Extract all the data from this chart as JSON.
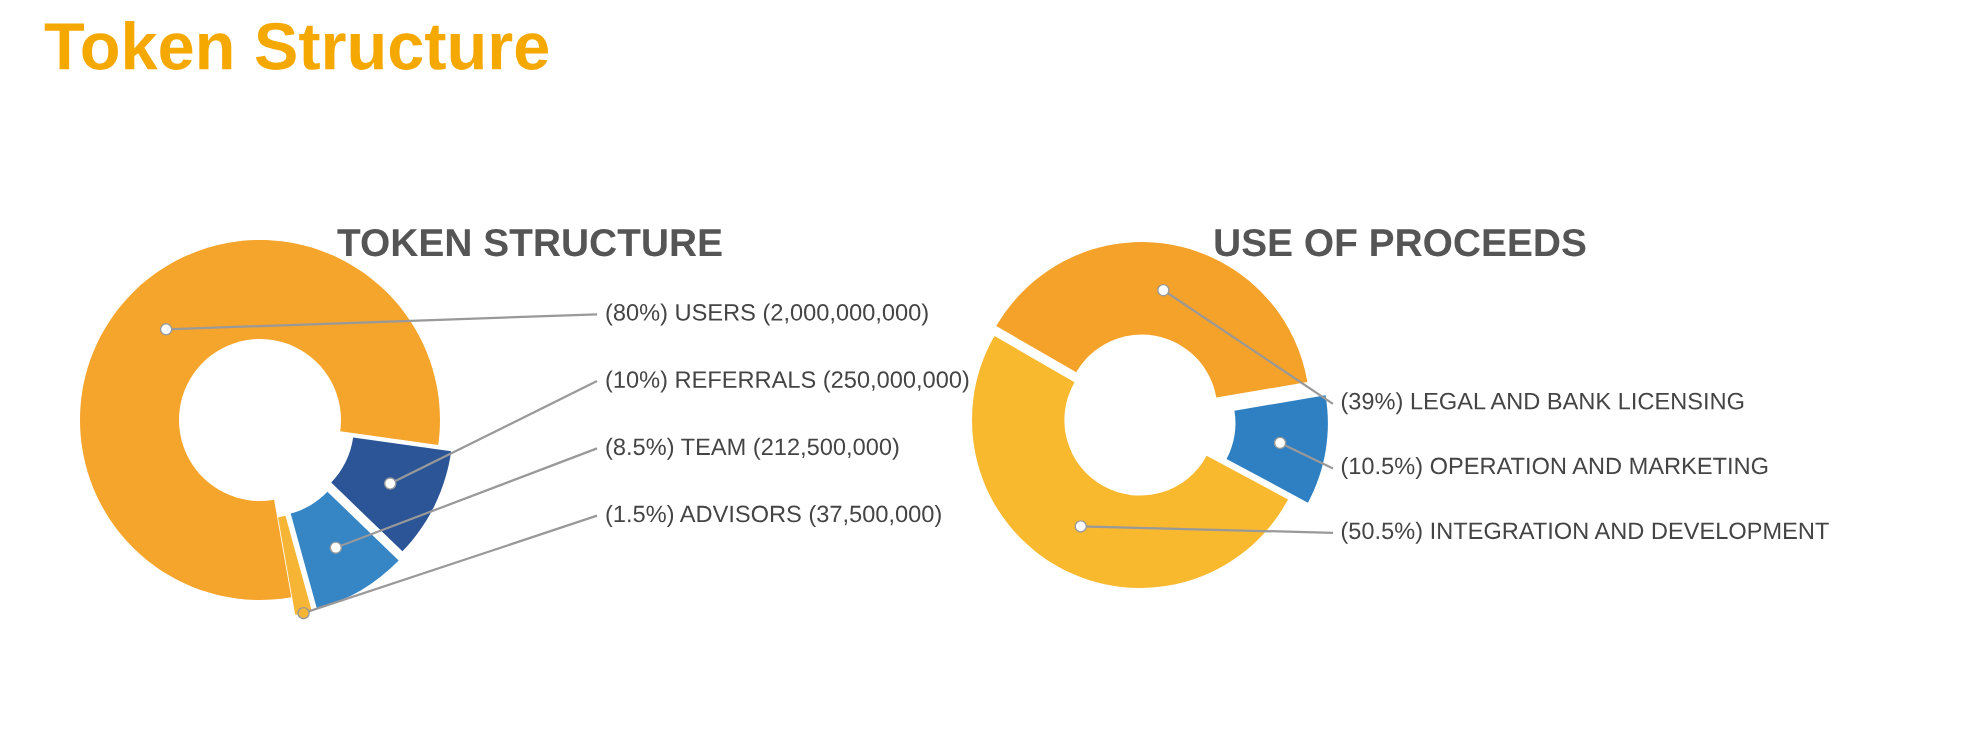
{
  "chart_data": [
    {
      "type": "donut",
      "title": "Token Structure",
      "subtitle": "TOKEN STRUCTURE",
      "categories": [
        "(80%) USERS (2,000,000,000)",
        "(10%) REFERRALS (250,000,000)",
        "(8.5%) TEAM (212,500,000)",
        "(1.5%) ADVISORS (37,500,000)"
      ],
      "values": [
        80,
        10,
        8.5,
        1.5
      ],
      "colors": [
        "#f6a52c",
        "#2b5597",
        "#3686c6",
        "#f7b536"
      ]
    },
    {
      "type": "donut",
      "subtitle": "USE OF PROCEEDS",
      "categories": [
        "(39%) LEGAL AND BANK LICENSING",
        "(10.5%) OPERATION AND MARKETING",
        "(50.5%) INTEGRATION AND DEVELOPMENT"
      ],
      "values": [
        39,
        10.5,
        50.5
      ],
      "colors": [
        "#f4a22a",
        "#2f80c3",
        "#f9b92e"
      ]
    }
  ]
}
